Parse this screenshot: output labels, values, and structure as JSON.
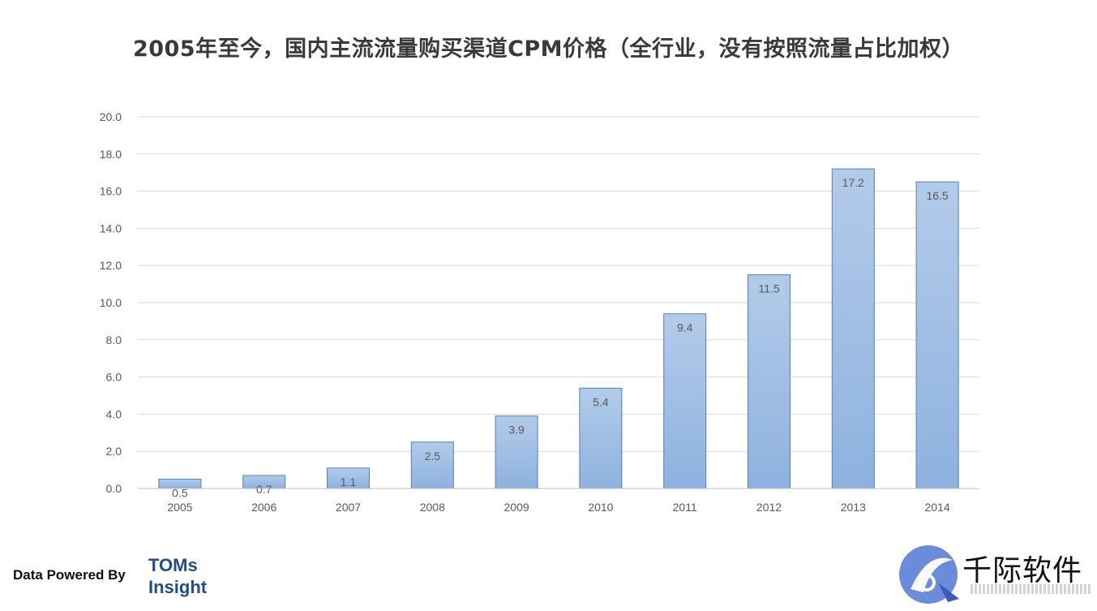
{
  "title": "2005年至今，国内主流流量购买渠道CPM价格（全行业，没有按照流量占比加权）",
  "footer": {
    "powered_by": "Data Powered By",
    "brand_line1": "TOMs",
    "brand_line2": "Insight",
    "watermark_text": "千际软件"
  },
  "colors": {
    "bar_top": "#b3cbe9",
    "bar_bottom": "#8db2df",
    "bar_border": "#4f81bd",
    "grid": "#d9d9d9",
    "tick_text": "#595959",
    "label_text": "#595959",
    "brand": "#1f4e8c"
  },
  "chart_data": {
    "type": "bar",
    "title": "2005年至今，国内主流流量购买渠道CPM价格（全行业，没有按照流量占比加权）",
    "categories": [
      "2005",
      "2006",
      "2007",
      "2008",
      "2009",
      "2010",
      "2011",
      "2012",
      "2013",
      "2014"
    ],
    "values": [
      0.5,
      0.7,
      1.1,
      2.5,
      3.9,
      5.4,
      9.4,
      11.5,
      17.2,
      16.5
    ],
    "data_labels": [
      "0.5",
      "0.7",
      "1.1",
      "2.5",
      "3.9",
      "5.4",
      "9.4",
      "11.5",
      "17.2",
      "16.5"
    ],
    "ylim": [
      0,
      20
    ],
    "yticks": [
      "0.0",
      "2.0",
      "4.0",
      "6.0",
      "8.0",
      "10.0",
      "12.0",
      "14.0",
      "16.0",
      "18.0",
      "20.0"
    ],
    "xlabel": "",
    "ylabel": "",
    "grid": true,
    "legend": "none"
  }
}
